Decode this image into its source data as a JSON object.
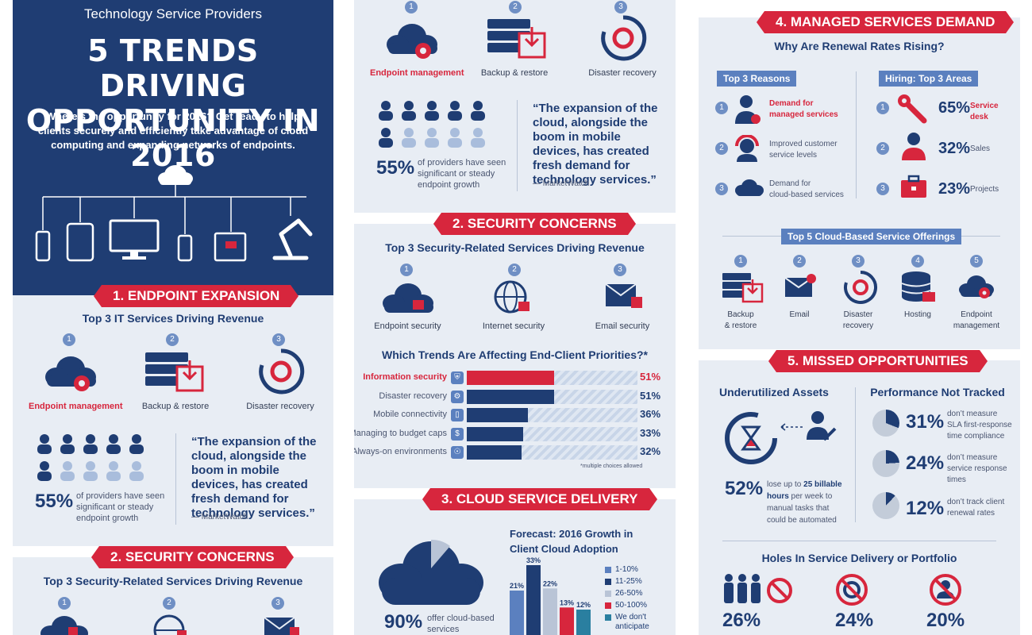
{
  "hero": {
    "subtitle": "Technology Service Providers",
    "title_line1": "5 TRENDS DRIVING",
    "title_line2": "OPPORTUNITY IN 2016",
    "intro": "Where’s the opportunity for 2016? Get ready to help clients securely and efficiently take advantage of cloud computing and expanding networks of endpoints."
  },
  "endpoint": {
    "banner": "1. ENDPOINT EXPANSION",
    "heading": "Top 3 IT Services Driving Revenue",
    "services": [
      {
        "num": "1",
        "label": "Endpoint management"
      },
      {
        "num": "2",
        "label": "Backup & restore"
      },
      {
        "num": "3",
        "label": "Disaster recovery"
      }
    ],
    "stat": "55%",
    "stat_text": "of providers have seen significant or steady endpoint growth",
    "quote": "“The expansion of the cloud, alongside the boom in mobile devices, has created fresh demand for technology services.”",
    "quote_source": "— MarketWatch"
  },
  "security": {
    "banner": "2. SECURITY CONCERNS",
    "heading": "Top 3 Security-Related Services Driving Revenue",
    "services": [
      {
        "num": "1",
        "label": "Endpoint security"
      },
      {
        "num": "2",
        "label": "Internet security"
      },
      {
        "num": "3",
        "label": "Email security"
      }
    ],
    "trends_heading": "Which Trends Are Affecting End-Client Priorities?*",
    "trends": [
      {
        "label": "Information security",
        "value": 51,
        "display": "51%"
      },
      {
        "label": "Disaster recovery",
        "value": 51,
        "display": "51%"
      },
      {
        "label": "Mobile connectivity",
        "value": 36,
        "display": "36%"
      },
      {
        "label": "Managing to budget caps",
        "value": 33,
        "display": "33%"
      },
      {
        "label": "Always-on environments",
        "value": 32,
        "display": "32%"
      }
    ],
    "footnote": "*multiple choices allowed"
  },
  "cloud": {
    "banner": "3. CLOUD SERVICE DELIVERY",
    "stat": "90%",
    "stat_text": "offer cloud-based services",
    "forecast_heading": "Forecast: 2016 Growth in Client Cloud Adoption",
    "chart_data": {
      "type": "bar",
      "categories": [
        "1-10%",
        "11-25%",
        "26-50%",
        "50-100%",
        "We don't anticipate"
      ],
      "values": [
        21,
        33,
        22,
        13,
        12
      ],
      "value_labels": [
        "21%",
        "33%",
        "22%",
        "13%",
        "12%"
      ],
      "colors": [
        "#5b80bf",
        "#1f3d73",
        "#b9c4d6",
        "#d7263d",
        "#2a7fa0"
      ],
      "legend": [
        "1-10%",
        "11-25%",
        "26-50%",
        "50-100%",
        "We don't anticipate"
      ]
    }
  },
  "managed": {
    "banner": "4. MANAGED SERVICES DEMAND",
    "heading": "Why Are Renewal Rates Rising?",
    "reasons_tag": "Top 3 Reasons",
    "reasons": [
      {
        "num": "1",
        "line1": "Demand for",
        "line2": "managed services"
      },
      {
        "num": "2",
        "line1": "Improved customer",
        "line2": "service levels"
      },
      {
        "num": "3",
        "line1": "Demand for",
        "line2": "cloud-based services"
      }
    ],
    "hiring_tag": "Hiring: Top 3 Areas",
    "hiring": [
      {
        "num": "1",
        "pct": "65%",
        "line1": "Service",
        "line2": "desk"
      },
      {
        "num": "2",
        "pct": "32%",
        "line1": "Sales",
        "line2": ""
      },
      {
        "num": "3",
        "pct": "23%",
        "line1": "Projects",
        "line2": ""
      }
    ],
    "offerings_tag": "Top 5 Cloud-Based Service Offerings",
    "offerings": [
      {
        "num": "1",
        "line1": "Backup",
        "line2": "& restore"
      },
      {
        "num": "2",
        "line1": "Email",
        "line2": ""
      },
      {
        "num": "3",
        "line1": "Disaster",
        "line2": "recovery"
      },
      {
        "num": "4",
        "line1": "Hosting",
        "line2": ""
      },
      {
        "num": "5",
        "line1": "Endpoint",
        "line2": "management"
      }
    ]
  },
  "missed": {
    "banner": "5. MISSED OPPORTUNITIES",
    "assets_heading": "Underutilized Assets",
    "assets_stat": "52%",
    "assets_text_pre": "lose up to ",
    "assets_text_bold": "25 billable hours",
    "assets_text_post": " per week to manual tasks that could be automated",
    "perf_heading": "Performance Not Tracked",
    "perf": [
      {
        "pct": "31%",
        "value": 31,
        "line1": "don’t measure",
        "line2": "SLA first-response",
        "line3": "time compliance"
      },
      {
        "pct": "24%",
        "value": 24,
        "line1": "don’t measure",
        "line2": "service response",
        "line3": "times"
      },
      {
        "pct": "12%",
        "value": 12,
        "line1": "don’t track client",
        "line2": "renewal rates",
        "line3": ""
      }
    ],
    "holes_heading": "Holes In Service Delivery or Portfolio",
    "holes": [
      "26%",
      "24%",
      "20%"
    ]
  },
  "colors": {
    "navy": "#1f3d73",
    "red": "#d7263d",
    "panel": "#e8edf4",
    "mid_blue": "#5b80bf"
  }
}
